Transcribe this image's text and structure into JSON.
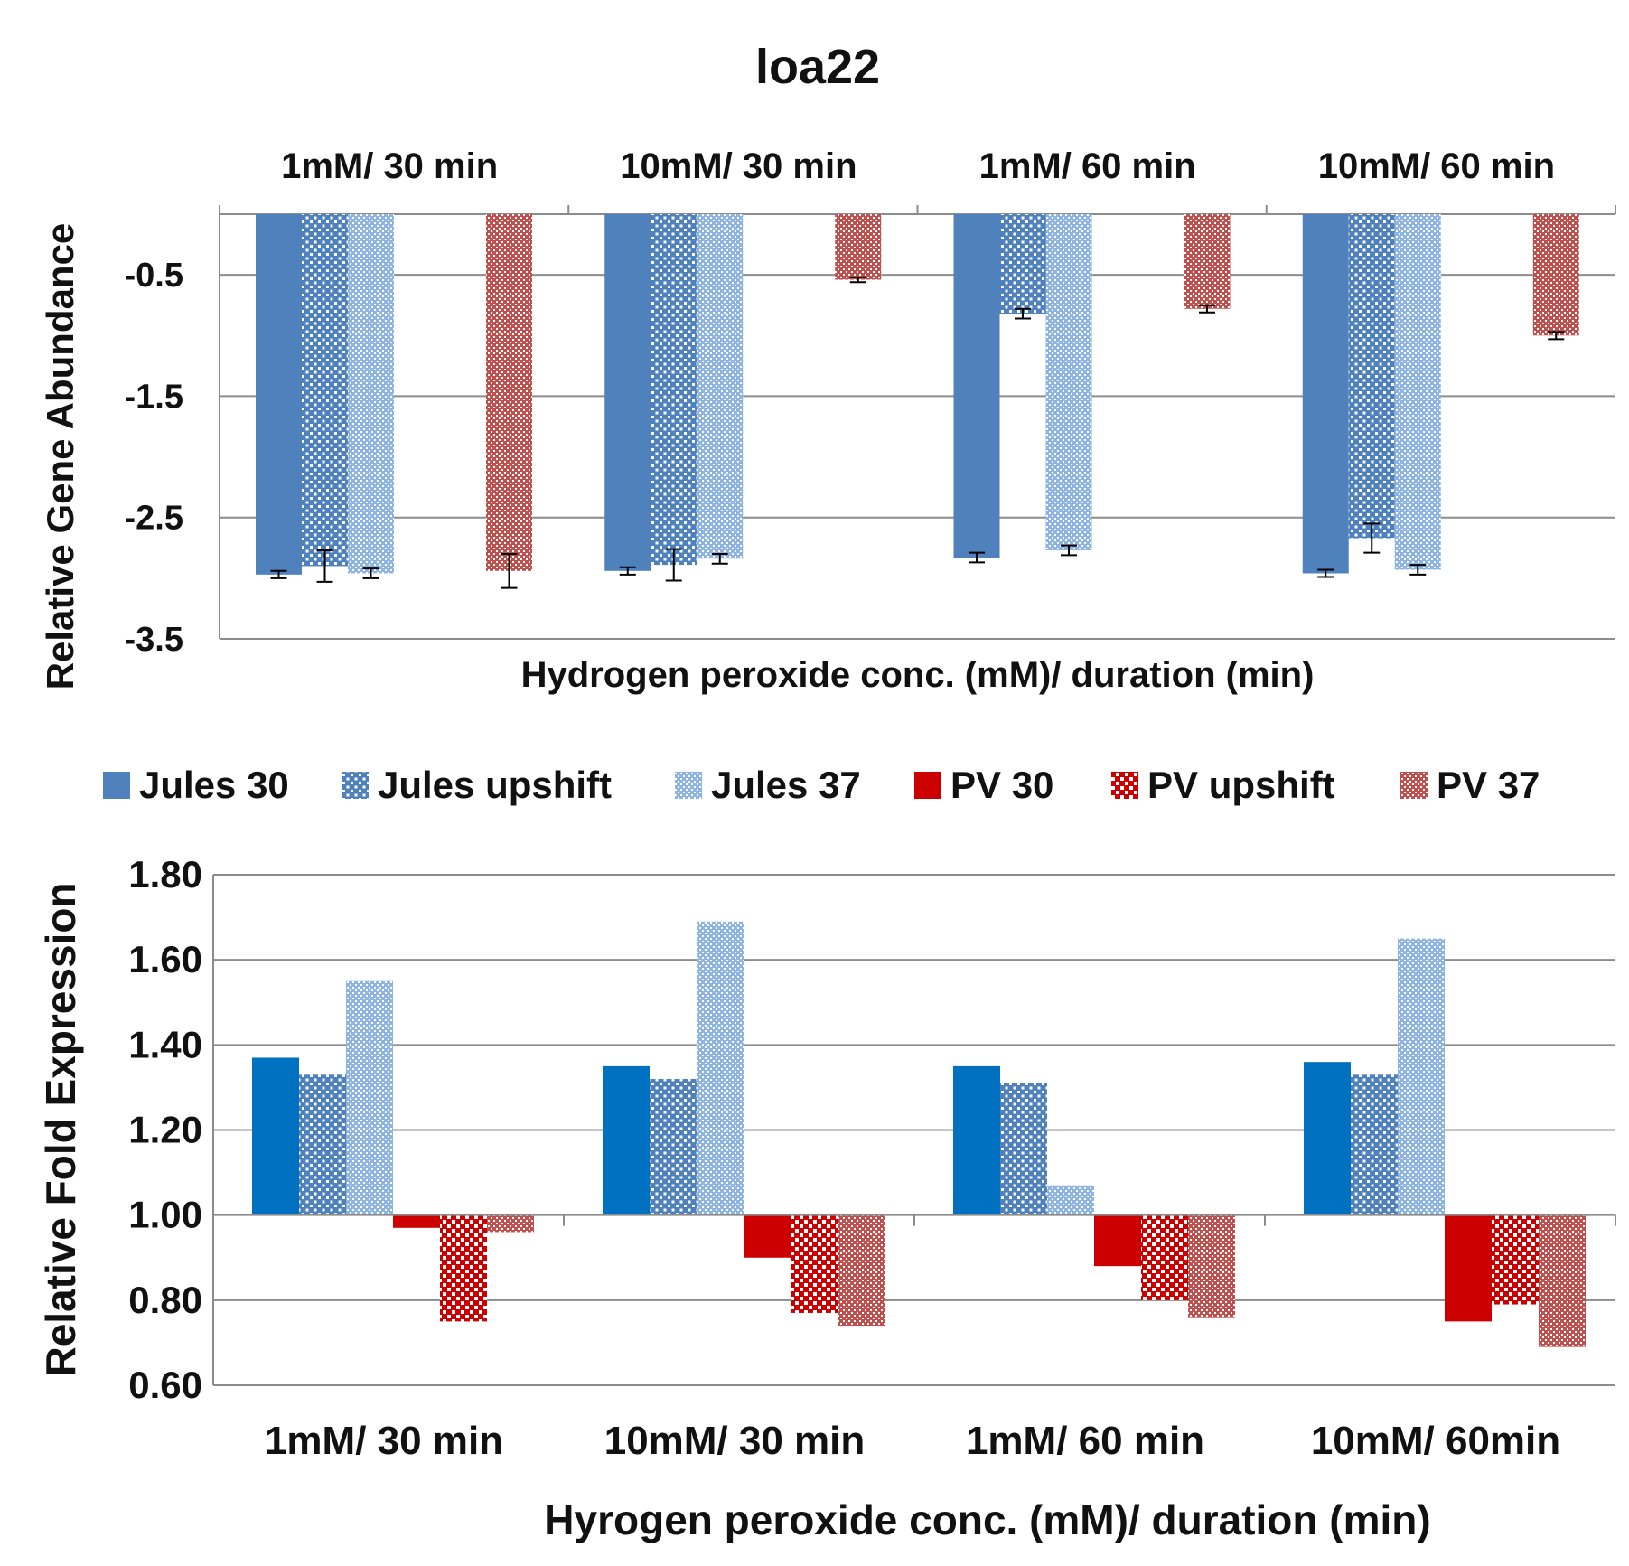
{
  "figure_title": "loa22",
  "legend": {
    "placement": "between charts, top of lower chart",
    "entries": [
      {
        "label": "Jules 30",
        "color": "#4F81BD",
        "pattern": "solid"
      },
      {
        "label": "Jules upshift",
        "color": "#4F81BD",
        "pattern": "dots"
      },
      {
        "label": "Jules 37",
        "color": "#8EB4E3",
        "pattern": "fine-dots"
      },
      {
        "label": "PV 30",
        "color": "#CC0000",
        "pattern": "solid"
      },
      {
        "label": "PV upshift",
        "color": "#CC0000",
        "pattern": "checker"
      },
      {
        "label": "PV 37",
        "color": "#C0504D",
        "pattern": "fine-dots"
      }
    ]
  },
  "chart_data": [
    {
      "type": "bar",
      "title": "loa22",
      "xlabel": "Hydrogen peroxide conc. (mM)/ duration (min)",
      "ylabel": "Relative Gene Abundance",
      "categories": [
        "1mM/ 30 min",
        "10mM/ 30 min",
        "1mM/ 60 min",
        "10mM/ 60 min"
      ],
      "category_label_position": "top",
      "ylim": [
        -3.5,
        0
      ],
      "yticks": [
        -0.5,
        -1.5,
        -2.5,
        -3.5
      ],
      "ytick_labels": [
        "-0.5",
        "-1.5",
        "-2.5",
        "-3.5"
      ],
      "grid": true,
      "series": [
        {
          "name": "Jules 30",
          "values": [
            -2.97,
            -2.94,
            -2.83,
            -2.96
          ],
          "errors": [
            0.03,
            0.03,
            0.04,
            0.03
          ]
        },
        {
          "name": "Jules upshift",
          "values": [
            -2.9,
            -2.89,
            -0.82,
            -2.67
          ],
          "errors": [
            0.13,
            0.13,
            0.04,
            0.12
          ]
        },
        {
          "name": "Jules 37",
          "values": [
            -2.96,
            -2.84,
            -2.77,
            -2.93
          ],
          "errors": [
            0.04,
            0.04,
            0.04,
            0.04
          ]
        },
        {
          "name": "PV 30",
          "values": [
            null,
            null,
            null,
            null
          ],
          "errors": [
            null,
            null,
            null,
            null
          ]
        },
        {
          "name": "PV upshift",
          "values": [
            null,
            null,
            null,
            null
          ],
          "errors": [
            null,
            null,
            null,
            null
          ]
        },
        {
          "name": "PV 37",
          "values": [
            -2.94,
            -0.54,
            -0.78,
            -1.0
          ],
          "errors": [
            0.14,
            0.02,
            0.03,
            0.03
          ]
        }
      ]
    },
    {
      "type": "bar",
      "xlabel": "Hyrogen peroxide conc. (mM)/ duration (min)",
      "ylabel": "Relative Fold Expression",
      "categories": [
        "1mM/ 30 min",
        "10mM/ 30 min",
        "1mM/ 60 min",
        "10mM/ 60min"
      ],
      "ylim": [
        0.6,
        1.8
      ],
      "baseline": 1.0,
      "yticks": [
        0.6,
        0.8,
        1.0,
        1.2,
        1.4,
        1.6,
        1.8
      ],
      "ytick_labels": [
        "0.60",
        "0.80",
        "1.00",
        "1.20",
        "1.40",
        "1.60",
        "1.80"
      ],
      "grid": true,
      "series": [
        {
          "name": "Jules 30",
          "values": [
            1.37,
            1.35,
            1.35,
            1.36
          ]
        },
        {
          "name": "Jules upshift",
          "values": [
            1.33,
            1.32,
            1.31,
            1.33
          ]
        },
        {
          "name": "Jules 37",
          "values": [
            1.55,
            1.69,
            1.07,
            1.65
          ]
        },
        {
          "name": "PV 30",
          "values": [
            0.97,
            0.9,
            0.88,
            0.75
          ]
        },
        {
          "name": "PV upshift",
          "values": [
            0.75,
            0.77,
            0.8,
            0.79
          ]
        },
        {
          "name": "PV 37",
          "values": [
            0.96,
            0.74,
            0.76,
            0.69
          ]
        }
      ]
    }
  ]
}
